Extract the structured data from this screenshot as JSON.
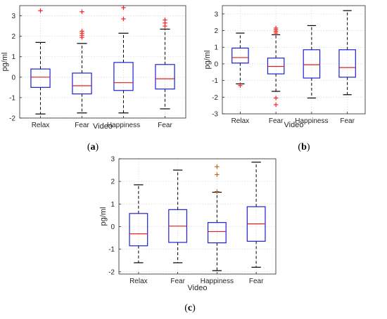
{
  "colors": {
    "box": "#1f1fd6",
    "median": "#e0201e",
    "whisker": "#000000",
    "outlier_a": "#ff2020",
    "outlier_c": "#c46a1e",
    "grid": "#dcdcdc"
  },
  "chart_data": [
    {
      "type": "box",
      "panel_label": "(a)",
      "xlabel": "Video",
      "ylabel": "pg/ml",
      "categories": [
        "Relax",
        "Fear",
        "Happiness",
        "Fear"
      ],
      "ylim": [
        -2,
        3.5
      ],
      "yticks": [
        -2,
        -1,
        0,
        1,
        2,
        3
      ],
      "grid": true,
      "boxes": [
        {
          "whisker_low": -1.8,
          "q1": -0.5,
          "median": 0.0,
          "q3": 0.4,
          "whisker_high": 1.7,
          "outliers": [
            3.25
          ]
        },
        {
          "whisker_low": -1.75,
          "q1": -0.82,
          "median": -0.42,
          "q3": 0.2,
          "whisker_high": 1.65,
          "outliers": [
            1.95,
            2.05,
            2.15,
            2.25,
            3.2
          ]
        },
        {
          "whisker_low": -1.75,
          "q1": -0.65,
          "median": -0.27,
          "q3": 0.72,
          "whisker_high": 2.15,
          "outliers": [
            2.85,
            3.4
          ]
        },
        {
          "whisker_low": -1.55,
          "q1": -0.58,
          "median": -0.08,
          "q3": 0.62,
          "whisker_high": 2.35,
          "outliers": [
            2.5,
            2.65,
            2.8
          ]
        }
      ]
    },
    {
      "type": "box",
      "panel_label": "(b)",
      "xlabel": "Video",
      "ylabel": "pg/ml",
      "categories": [
        "Relax",
        "Fear",
        "Happiness",
        "Fear"
      ],
      "ylim": [
        -3,
        3.5
      ],
      "yticks": [
        -3,
        -2,
        -1,
        0,
        1,
        2,
        3
      ],
      "grid": true,
      "boxes": [
        {
          "whisker_low": -1.2,
          "q1": 0.05,
          "median": 0.38,
          "q3": 0.95,
          "whisker_high": 1.85,
          "outliers": [
            -1.3
          ]
        },
        {
          "whisker_low": -1.65,
          "q1": -0.6,
          "median": -0.15,
          "q3": 0.35,
          "whisker_high": 1.75,
          "outliers": [
            1.85,
            1.95,
            2.05,
            2.15,
            -2.05,
            -2.45
          ]
        },
        {
          "whisker_low": -2.05,
          "q1": -0.85,
          "median": -0.05,
          "q3": 0.85,
          "whisker_high": 2.3,
          "outliers": []
        },
        {
          "whisker_low": -1.85,
          "q1": -0.8,
          "median": -0.22,
          "q3": 0.85,
          "whisker_high": 3.2,
          "outliers": []
        }
      ]
    },
    {
      "type": "box",
      "panel_label": "(c)",
      "xlabel": "Video",
      "ylabel": "pg/ml",
      "categories": [
        "Relax",
        "Fear",
        "Happiness",
        "Fear"
      ],
      "ylim": [
        -2.1,
        3
      ],
      "yticks": [
        -2,
        -1,
        0,
        1,
        2,
        3
      ],
      "grid": true,
      "boxes": [
        {
          "whisker_low": -1.6,
          "q1": -0.85,
          "median": -0.32,
          "q3": 0.58,
          "whisker_high": 1.85,
          "outliers": []
        },
        {
          "whisker_low": -1.6,
          "q1": -0.7,
          "median": 0.02,
          "q3": 0.75,
          "whisker_high": 2.5,
          "outliers": []
        },
        {
          "whisker_low": -1.95,
          "q1": -0.72,
          "median": -0.22,
          "q3": 0.18,
          "whisker_high": 1.52,
          "outliers": [
            1.55,
            2.3,
            2.65
          ]
        },
        {
          "whisker_low": -1.8,
          "q1": -0.65,
          "median": 0.12,
          "q3": 0.88,
          "whisker_high": 2.85,
          "outliers": []
        }
      ]
    }
  ]
}
